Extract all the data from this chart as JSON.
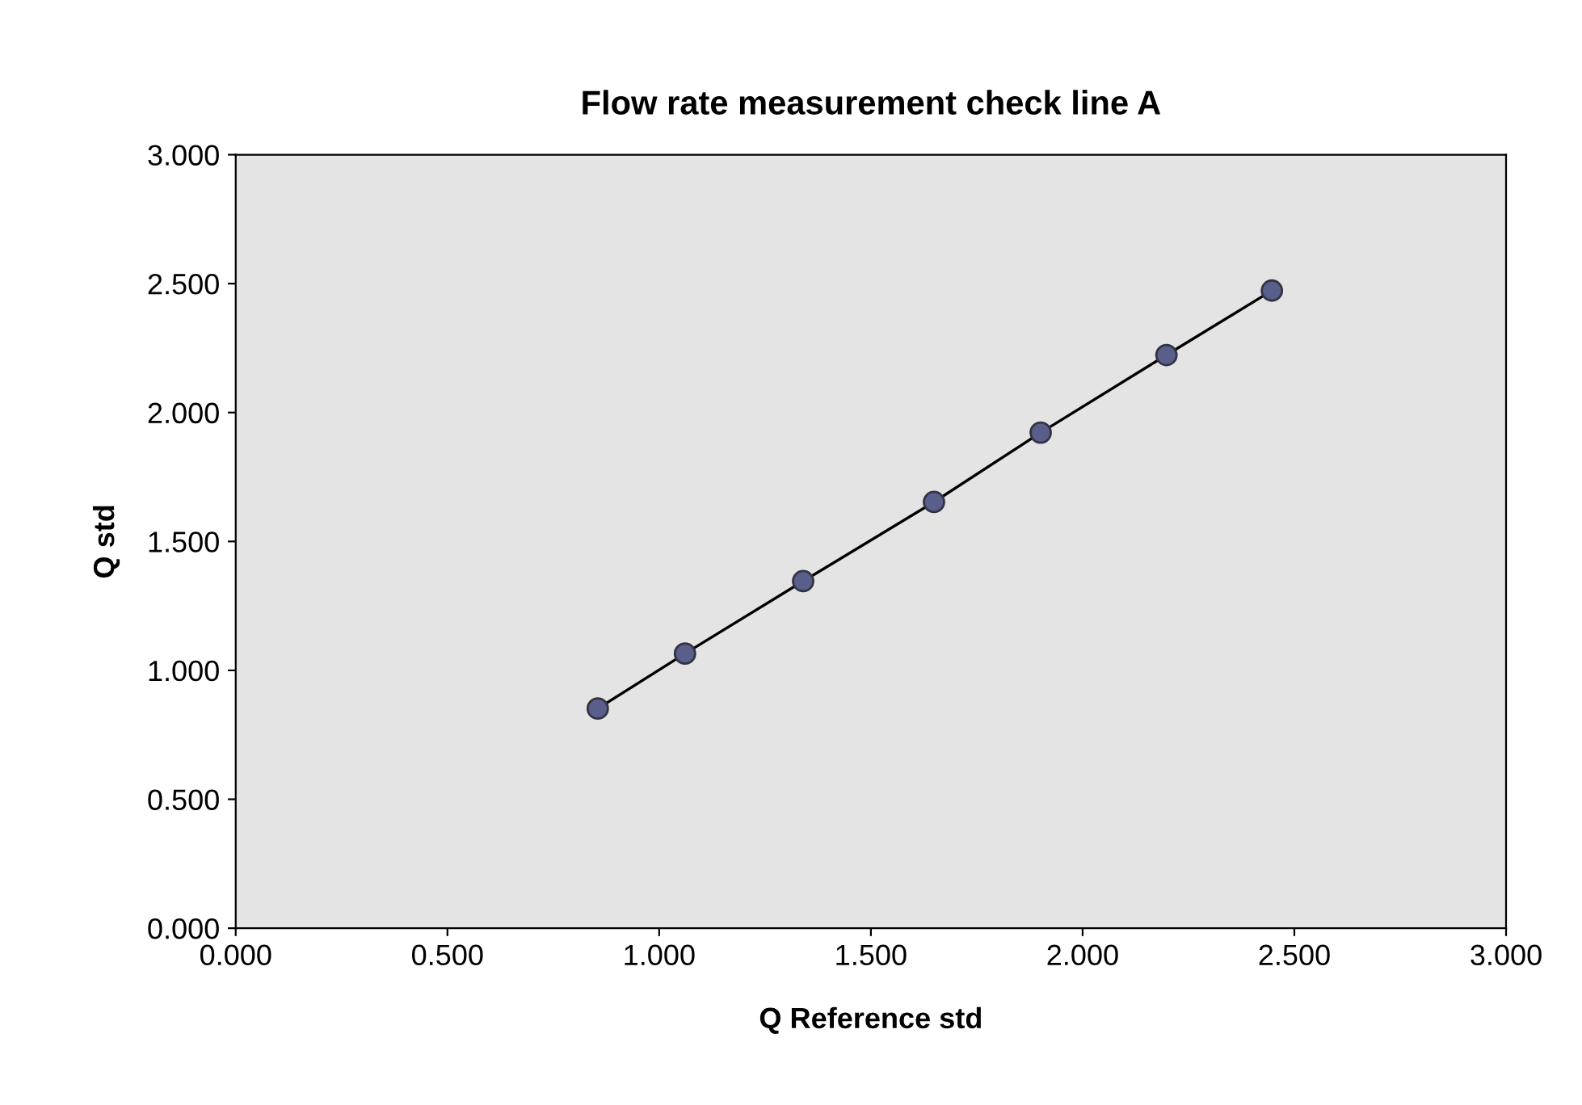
{
  "chart_data": {
    "type": "line",
    "title": "Flow rate measurement check line A",
    "xlabel": "Q Reference std",
    "ylabel": "Q std",
    "x": [
      0.855,
      1.061,
      1.34,
      1.649,
      1.901,
      2.198,
      2.447
    ],
    "series": [
      {
        "color": "#5a5e8a",
        "values": [
          0.852,
          1.065,
          1.346,
          1.653,
          1.922,
          2.223,
          2.473
        ]
      }
    ],
    "marker": "circle",
    "line_style": "solid",
    "grid": false,
    "legend": false,
    "xlim": [
      0,
      3
    ],
    "xticks": [
      {
        "value": 0,
        "label": "0.000"
      },
      {
        "value": 0.5,
        "label": "0.500"
      },
      {
        "value": 1,
        "label": "1.000"
      },
      {
        "value": 1.5,
        "label": "1.500"
      },
      {
        "value": 2,
        "label": "2.000"
      },
      {
        "value": 2.5,
        "label": "2.500"
      },
      {
        "value": 3,
        "label": "3.000"
      }
    ],
    "ylim": [
      0,
      3
    ],
    "yticks": [
      {
        "value": 0,
        "label": "0.000"
      },
      {
        "value": 0.5,
        "label": "0.500"
      },
      {
        "value": 1,
        "label": "1.000"
      },
      {
        "value": 1.5,
        "label": "1.500"
      },
      {
        "value": 2,
        "label": "2.000"
      },
      {
        "value": 2.5,
        "label": "2.500"
      },
      {
        "value": 3,
        "label": "3.000"
      }
    ]
  }
}
